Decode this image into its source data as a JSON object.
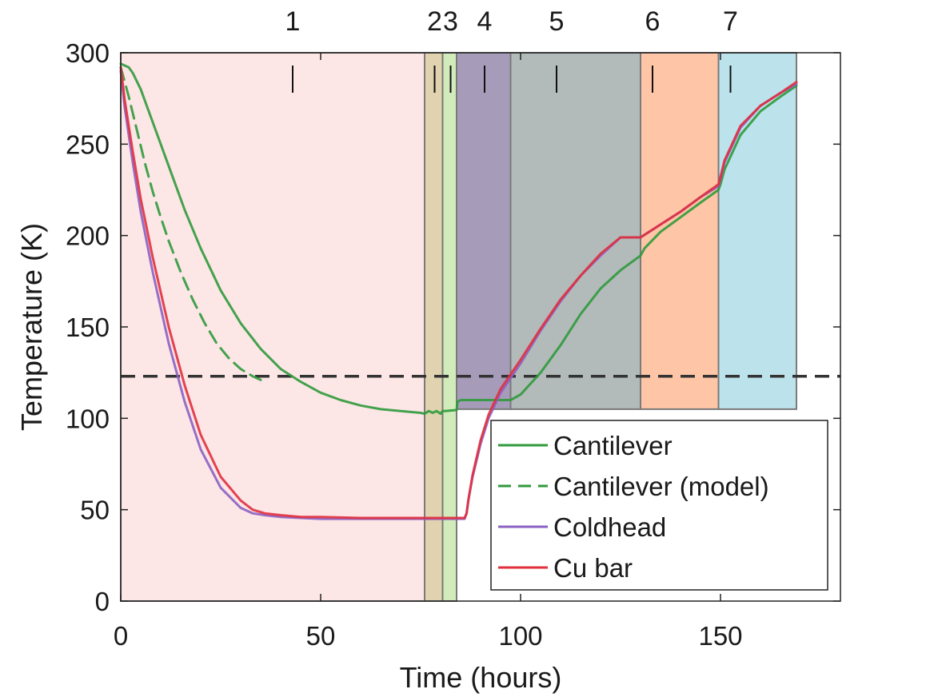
{
  "chart_data": {
    "type": "line",
    "title": "",
    "xlabel": "Time (hours)",
    "ylabel": "Temperature (K)",
    "xlim": [
      0,
      180
    ],
    "ylim": [
      0,
      300
    ],
    "xticks": [
      0,
      50,
      100,
      150
    ],
    "yticks": [
      0,
      50,
      100,
      150,
      200,
      250,
      300
    ],
    "grid": false,
    "legend_position": "bottom-right",
    "threshold": {
      "value": 123,
      "color": "#333333",
      "style": "dashed"
    },
    "regions": [
      {
        "label": "1",
        "x0": 0,
        "x1": 76,
        "y0": 0,
        "y1": 300,
        "color": "#fbc8c8",
        "label_x": 43
      },
      {
        "label": "2",
        "x0": 76,
        "x1": 80.5,
        "y0": 0,
        "y1": 300,
        "color": "#cdb57a",
        "label_x": 78.5
      },
      {
        "label": "3",
        "x0": 80.5,
        "x1": 84,
        "y0": 0,
        "y1": 300,
        "color": "#b3e08c",
        "label_x": 82.5
      },
      {
        "label": "4",
        "x0": 84,
        "x1": 97.5,
        "y0": 105,
        "y1": 300,
        "color": "#6b5a8a",
        "label_x": 91
      },
      {
        "label": "5",
        "x0": 97.5,
        "x1": 130,
        "y0": 105,
        "y1": 300,
        "color": "#7f8c8c",
        "label_x": 109
      },
      {
        "label": "6",
        "x0": 130,
        "x1": 149.5,
        "y0": 105,
        "y1": 300,
        "color": "#fd9f6a",
        "label_x": 133
      },
      {
        "label": "7",
        "x0": 149.5,
        "x1": 169,
        "y0": 105,
        "y1": 300,
        "color": "#8fcfe0",
        "label_x": 152.5
      }
    ],
    "series": [
      {
        "name": "Cantilever",
        "color": "#2f9a3c",
        "style": "solid",
        "x": [
          0,
          1,
          2,
          3,
          5,
          8,
          12,
          16,
          20,
          25,
          30,
          35,
          40,
          45,
          50,
          55,
          60,
          65,
          70,
          75,
          76,
          77,
          77.5,
          78,
          79,
          80,
          80.5,
          81,
          84,
          84.2,
          85,
          90,
          95,
          97.5,
          100,
          105,
          110,
          115,
          120,
          125,
          130,
          131,
          135,
          140,
          145,
          149.5,
          150,
          151,
          155,
          160,
          165,
          169
        ],
        "y": [
          294,
          293,
          292,
          289,
          280,
          262,
          238,
          214,
          193,
          170,
          152,
          138,
          127,
          120,
          114,
          110,
          107,
          105,
          104,
          103,
          102.5,
          104,
          103.5,
          103,
          104,
          102.5,
          104,
          104,
          104.5,
          109,
          110,
          110,
          110,
          110,
          113,
          125,
          140,
          157,
          171,
          181,
          189,
          193,
          202,
          210,
          218,
          225,
          228,
          236,
          255,
          268,
          276,
          282
        ]
      },
      {
        "name": "Cantilever (model)",
        "color": "#2f9a3c",
        "style": "dashed",
        "x": [
          0,
          1,
          2,
          4,
          6,
          8,
          10,
          12,
          15,
          18,
          21,
          24,
          27,
          30,
          33,
          35
        ],
        "y": [
          292,
          284,
          276,
          258,
          240,
          224,
          210,
          197,
          180,
          165,
          152,
          141,
          133,
          127,
          123,
          121
        ]
      },
      {
        "name": "Coldhead",
        "color": "#8b61c2",
        "style": "solid",
        "x": [
          0,
          1,
          3,
          5,
          8,
          12,
          16,
          20,
          25,
          30,
          33,
          36,
          40,
          45,
          50,
          60,
          70,
          80,
          86,
          86.5,
          87,
          88,
          90,
          92,
          95,
          100,
          105,
          110,
          115,
          120,
          125,
          130,
          135,
          140,
          145,
          149.5,
          150,
          151,
          155,
          160,
          165,
          169
        ],
        "y": [
          290,
          270,
          240,
          213,
          180,
          141,
          109,
          83,
          62,
          51,
          48,
          47,
          46,
          45.5,
          45,
          45,
          45,
          45,
          45,
          48,
          56,
          68,
          86,
          100,
          114,
          130,
          148,
          164,
          178,
          189,
          199,
          199,
          206,
          213,
          221,
          227,
          231,
          240,
          259,
          271,
          278,
          283
        ]
      },
      {
        "name": "Cu bar",
        "color": "#e0303e",
        "style": "solid",
        "x": [
          0,
          1,
          3,
          5,
          8,
          12,
          16,
          20,
          25,
          30,
          33,
          36,
          40,
          45,
          50,
          60,
          70,
          80,
          86,
          86.5,
          87,
          88,
          90,
          92,
          95,
          100,
          105,
          110,
          115,
          120,
          125,
          130,
          135,
          140,
          145,
          149.5,
          150,
          151,
          155,
          160,
          165,
          169
        ],
        "y": [
          292,
          274,
          246,
          220,
          188,
          150,
          118,
          91,
          68,
          55,
          50,
          48,
          47,
          46,
          46,
          45.5,
          45.5,
          45.5,
          45.5,
          48,
          56,
          69,
          88,
          102,
          116,
          132,
          149,
          165,
          178,
          190,
          199,
          199,
          206,
          213,
          221,
          228,
          232,
          241,
          260,
          271,
          278,
          284
        ]
      }
    ]
  }
}
